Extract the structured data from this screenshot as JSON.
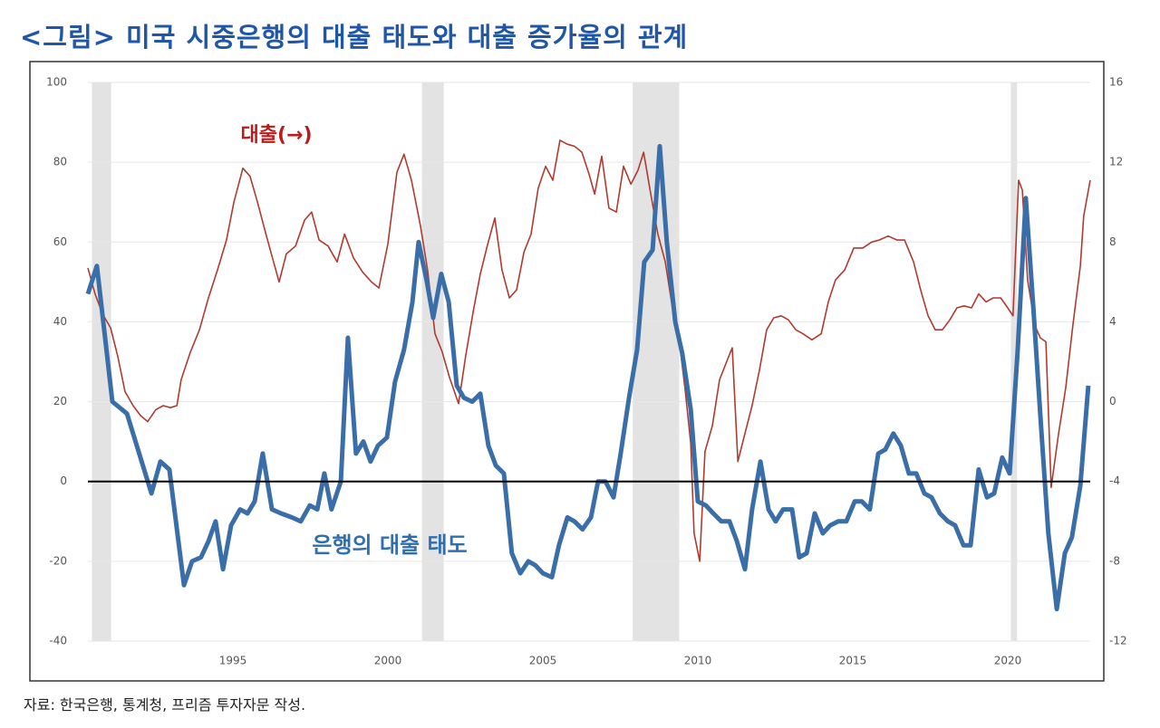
{
  "chart_data": {
    "type": "line",
    "title": "<그림> 미국 시중은행의 대출 태도와 대출 증가율의 관계",
    "source": "자료: 한국은행, 통계청, 프리즘 투자자문 작성.",
    "annotations": [
      "대출(→)",
      "은행의 대출 태도"
    ],
    "xlim": [
      1990.32,
      2022.66
    ],
    "xticks": [
      1995,
      2000,
      2005,
      2010,
      2015,
      2020
    ],
    "ylim": [
      -40,
      100
    ],
    "yticks": [
      -40,
      -20,
      0,
      20,
      40,
      60,
      80,
      100
    ],
    "y2lim": [
      -12,
      16
    ],
    "y2ticks": [
      -12,
      -8,
      -4,
      0,
      4,
      8,
      12,
      16
    ],
    "grid": true,
    "zero_line": 0,
    "recessions": [
      [
        1990.45,
        1991.07
      ],
      [
        2001.1,
        2001.8
      ],
      [
        2007.9,
        2009.4
      ],
      [
        2020.1,
        2020.3
      ]
    ],
    "series": [
      {
        "name": "은행의 대출 태도",
        "color": "#3a6ea8",
        "axis": "y",
        "x": [
          1990.32,
          1990.61,
          1991.11,
          1991.58,
          1992.37,
          1992.66,
          1992.95,
          1993.42,
          1993.68,
          1993.97,
          1994.21,
          1994.44,
          1994.68,
          1994.94,
          1995.23,
          1995.47,
          1995.7,
          1995.96,
          1996.26,
          1996.55,
          1996.9,
          1997.19,
          1997.48,
          1997.72,
          1997.95,
          1998.18,
          1998.48,
          1998.71,
          1998.97,
          1999.21,
          1999.44,
          1999.68,
          1999.97,
          2000.23,
          2000.52,
          2000.79,
          2000.99,
          2001.26,
          2001.46,
          2001.72,
          2001.96,
          2002.22,
          2002.45,
          2002.72,
          2002.98,
          2003.24,
          2003.48,
          2003.74,
          2004.0,
          2004.27,
          2004.53,
          2004.76,
          2005.0,
          2005.29,
          2005.52,
          2005.79,
          2006.02,
          2006.28,
          2006.55,
          2006.78,
          2007.02,
          2007.28,
          2007.51,
          2007.78,
          2008.04,
          2008.27,
          2008.54,
          2008.77,
          2009.0,
          2009.27,
          2009.5,
          2009.77,
          2010.0,
          2010.26,
          2010.5,
          2010.76,
          2011.02,
          2011.26,
          2011.52,
          2011.75,
          2012.02,
          2012.28,
          2012.51,
          2012.75,
          2013.04,
          2013.27,
          2013.51,
          2013.77,
          2014.03,
          2014.27,
          2014.53,
          2014.79,
          2015.06,
          2015.29,
          2015.55,
          2015.82,
          2016.05,
          2016.31,
          2016.55,
          2016.81,
          2017.05,
          2017.31,
          2017.54,
          2017.81,
          2018.07,
          2018.3,
          2018.57,
          2018.8,
          2019.06,
          2019.33,
          2019.56,
          2019.82,
          2020.06,
          2020.32,
          2020.58,
          2020.82,
          2021.08,
          2021.31,
          2021.58,
          2021.84,
          2022.07,
          2022.34,
          2022.6
        ],
        "values": [
          47,
          54,
          20,
          17,
          -3,
          5,
          3,
          -26,
          -20,
          -19,
          -15,
          -10,
          -22,
          -11,
          -7,
          -8,
          -5,
          7,
          -7,
          -8,
          -9,
          -10,
          -6,
          -7,
          2,
          -7,
          0,
          36,
          7,
          10,
          5,
          9,
          11,
          25,
          33,
          45,
          60,
          50,
          41,
          52,
          45,
          24,
          21,
          20,
          22,
          9,
          4,
          2,
          -18,
          -23,
          -20,
          -21,
          -23,
          -24,
          -16,
          -9,
          -10,
          -12,
          -9,
          0,
          0,
          -4,
          7,
          21,
          33,
          55,
          58,
          84,
          60,
          40,
          32,
          18,
          -5,
          -6,
          -8,
          -10,
          -10,
          -15,
          -22,
          -7,
          5,
          -7,
          -10,
          -7,
          -7,
          -19,
          -18,
          -8,
          -13,
          -11,
          -10,
          -10,
          -5,
          -5,
          -7,
          7,
          8,
          12,
          9,
          2,
          2,
          -3,
          -4,
          -8,
          -10,
          -11,
          -16,
          -16,
          3,
          -4,
          -3,
          6,
          2,
          33,
          71,
          44,
          13,
          -13,
          -32,
          -18,
          -14,
          -1,
          24
        ]
      },
      {
        "name": "대출",
        "color": "#b03a30",
        "axis": "y2",
        "x": [
          1990.32,
          1990.55,
          1990.79,
          1991.05,
          1991.28,
          1991.52,
          1991.78,
          1992.02,
          1992.25,
          1992.51,
          1992.75,
          1992.98,
          1993.19,
          1993.33,
          1993.63,
          1993.92,
          1994.21,
          1994.5,
          1994.79,
          1995.03,
          1995.32,
          1995.55,
          1995.79,
          1996.08,
          1996.31,
          1996.49,
          1996.72,
          1997.02,
          1997.31,
          1997.54,
          1997.78,
          1998.07,
          1998.36,
          1998.6,
          1998.89,
          1999.18,
          1999.47,
          1999.71,
          2000.0,
          2000.29,
          2000.52,
          2000.76,
          2001.05,
          2001.28,
          2001.52,
          2001.75,
          2001.99,
          2002.28,
          2002.51,
          2002.75,
          2002.98,
          2003.22,
          2003.45,
          2003.68,
          2003.92,
          2004.15,
          2004.39,
          2004.62,
          2004.85,
          2005.09,
          2005.32,
          2005.55,
          2005.79,
          2006.02,
          2006.26,
          2006.49,
          2006.67,
          2006.9,
          2007.13,
          2007.37,
          2007.6,
          2007.84,
          2008.07,
          2008.25,
          2008.48,
          2008.71,
          2008.95,
          2009.18,
          2009.41,
          2009.59,
          2009.77,
          2009.88,
          2010.06,
          2010.23,
          2010.47,
          2010.7,
          2010.93,
          2011.11,
          2011.29,
          2011.52,
          2011.75,
          2011.99,
          2012.22,
          2012.45,
          2012.69,
          2012.92,
          2013.16,
          2013.39,
          2013.68,
          2013.98,
          2014.21,
          2014.44,
          2014.74,
          2015.03,
          2015.32,
          2015.61,
          2015.85,
          2016.14,
          2016.43,
          2016.67,
          2016.96,
          2017.19,
          2017.43,
          2017.66,
          2017.89,
          2018.13,
          2018.36,
          2018.59,
          2018.83,
          2019.06,
          2019.3,
          2019.53,
          2019.77,
          2020.0,
          2020.17,
          2020.35,
          2020.47,
          2020.64,
          2020.88,
          2021.05,
          2021.23,
          2021.4,
          2021.64,
          2021.87,
          2022.1,
          2022.34,
          2022.45,
          2022.66
        ],
        "values": [
          6.7,
          5.4,
          4.4,
          3.7,
          2.3,
          0.5,
          -0.2,
          -0.7,
          -1.0,
          -0.4,
          -0.2,
          -0.3,
          -0.2,
          1.1,
          2.5,
          3.6,
          5.2,
          6.6,
          8.1,
          10.0,
          11.7,
          11.3,
          10.0,
          8.3,
          7.0,
          6.0,
          7.4,
          7.8,
          9.1,
          9.5,
          8.1,
          7.8,
          7.0,
          8.4,
          7.2,
          6.5,
          6.0,
          5.7,
          7.9,
          11.5,
          12.4,
          11.1,
          8.8,
          6.6,
          3.4,
          2.5,
          1.2,
          -0.1,
          2.3,
          4.5,
          6.4,
          7.9,
          9.2,
          6.6,
          5.2,
          5.6,
          7.5,
          8.4,
          10.7,
          11.8,
          11.1,
          13.1,
          12.9,
          12.8,
          12.5,
          11.4,
          10.4,
          12.3,
          9.7,
          9.5,
          11.8,
          10.9,
          11.6,
          12.5,
          10.4,
          8.4,
          7.0,
          4.7,
          2.9,
          0.6,
          -2.1,
          -6.6,
          -8.0,
          -2.5,
          -1.2,
          1.1,
          2.0,
          2.7,
          -3.0,
          -1.6,
          -0.2,
          1.6,
          3.6,
          4.2,
          4.3,
          4.1,
          3.6,
          3.4,
          3.1,
          3.4,
          5.0,
          6.1,
          6.6,
          7.7,
          7.7,
          8.0,
          8.1,
          8.3,
          8.1,
          8.1,
          7.0,
          5.6,
          4.3,
          3.6,
          3.6,
          4.1,
          4.7,
          4.8,
          4.7,
          5.4,
          5.0,
          5.2,
          5.2,
          4.7,
          4.3,
          11.1,
          10.6,
          6.1,
          3.8,
          3.2,
          3.0,
          -4.3,
          -1.6,
          0.7,
          3.8,
          6.8,
          9.3,
          11.1
        ]
      }
    ]
  }
}
